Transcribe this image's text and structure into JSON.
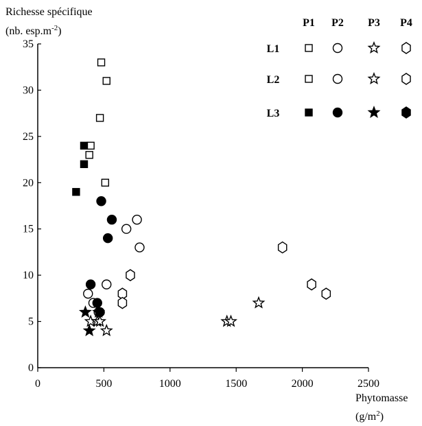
{
  "chart_data": {
    "type": "scatter",
    "ylabel_line1": "Richesse spécifique",
    "ylabel_line2_prefix": "(nb. esp.m",
    "ylabel_line2_sup": "-2",
    "ylabel_line2_suffix": ")",
    "xlabel_line1": "Phytomasse",
    "xlabel_line2_prefix": "(g/m",
    "xlabel_line2_sup": "2",
    "xlabel_line2_suffix": ")",
    "xlim": [
      0,
      2500
    ],
    "ylim": [
      0,
      35
    ],
    "xticks": [
      0,
      500,
      1000,
      1500,
      2000,
      2500
    ],
    "yticks": [
      0,
      5,
      10,
      15,
      20,
      25,
      30,
      35
    ],
    "grid": false,
    "legend_placement": "top-right",
    "legend": {
      "columns": [
        "P1",
        "P2",
        "P3",
        "P4"
      ],
      "rows": [
        {
          "label": "L1",
          "filled": false
        },
        {
          "label": "L2",
          "filled": false
        },
        {
          "label": "L3",
          "filled": true
        }
      ]
    },
    "series": [
      {
        "marker": "square",
        "filled": false,
        "points": [
          [
            480,
            33
          ],
          [
            520,
            31
          ],
          [
            470,
            27
          ],
          [
            400,
            24
          ],
          [
            390,
            23
          ],
          [
            510,
            20
          ]
        ]
      },
      {
        "marker": "square",
        "filled": true,
        "points": [
          [
            350,
            24
          ],
          [
            350,
            22
          ],
          [
            290,
            19
          ]
        ]
      },
      {
        "marker": "circle",
        "filled": false,
        "points": [
          [
            750,
            16
          ],
          [
            670,
            15
          ],
          [
            770,
            13
          ],
          [
            520,
            9
          ],
          [
            380,
            8
          ],
          [
            420,
            7
          ],
          [
            460,
            6
          ]
        ]
      },
      {
        "marker": "circle",
        "filled": true,
        "points": [
          [
            480,
            18
          ],
          [
            560,
            16
          ],
          [
            530,
            14
          ],
          [
            400,
            9
          ],
          [
            450,
            7
          ],
          [
            470,
            6
          ]
        ]
      },
      {
        "marker": "star",
        "filled": false,
        "points": [
          [
            1670,
            7
          ],
          [
            1430,
            5
          ],
          [
            1460,
            5
          ],
          [
            400,
            5
          ],
          [
            450,
            5
          ],
          [
            470,
            5
          ],
          [
            520,
            4
          ]
        ]
      },
      {
        "marker": "star",
        "filled": true,
        "points": [
          [
            360,
            6
          ],
          [
            460,
            6
          ],
          [
            390,
            4
          ]
        ]
      },
      {
        "marker": "hexagon",
        "filled": false,
        "points": [
          [
            1850,
            13
          ],
          [
            700,
            10
          ],
          [
            2070,
            9
          ],
          [
            2180,
            8
          ],
          [
            640,
            8
          ],
          [
            640,
            7
          ]
        ]
      }
    ]
  }
}
